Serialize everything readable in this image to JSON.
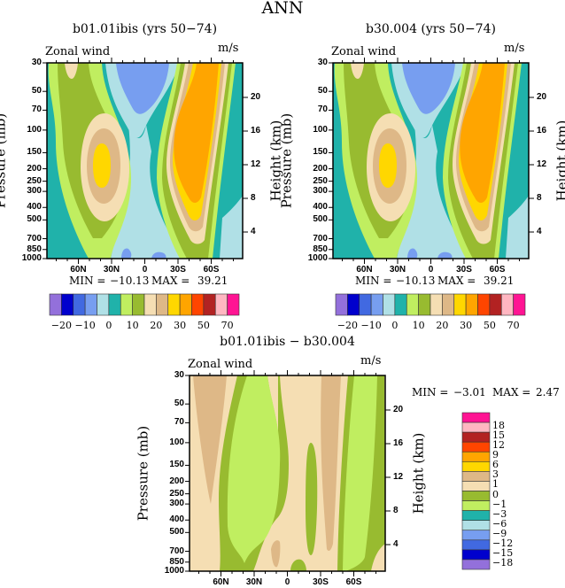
{
  "page_title": "ANN",
  "panels": [
    {
      "title": "b01.01ibis (yrs 50−74)",
      "left_label": "Zonal wind",
      "right_label": "m/s",
      "y_label": "Pressure (mb)",
      "y2_label": "Height (km)",
      "min_label": "MIN =",
      "min": "−10.13",
      "max_label": "MAX =",
      "max": "39.21"
    },
    {
      "title": "b30.004 (yrs 50−74)",
      "left_label": "Zonal wind",
      "right_label": "m/s",
      "y_label": "Pressure (mb)",
      "y2_label": "Height (km)",
      "min_label": "MIN =",
      "min": "−10.13",
      "max_label": "MAX =",
      "max": "39.21"
    },
    {
      "title": "b01.01ibis − b30.004",
      "left_label": "Zonal wind",
      "right_label": "m/s",
      "y_label": "Pressure (mb)",
      "y2_label": "Height (km)",
      "min_label": "MIN =",
      "min": "−3.01",
      "max_label": "MAX =",
      "max": "2.47"
    }
  ],
  "chart_data": [
    {
      "type": "heatmap",
      "subtype": "contour",
      "title": "b01.01ibis (yrs 50−74)",
      "variable": "Zonal wind",
      "units": "m/s",
      "ylabel": "Pressure (mb)",
      "y2label": "Height (km)",
      "ylim": [
        1000,
        30
      ],
      "yscale": "log",
      "y_ticks": [
        "30",
        "50",
        "70",
        "100",
        "150",
        "200",
        "250",
        "300",
        "400",
        "500",
        "700",
        "850",
        "1000"
      ],
      "y2_ticks": [
        "20",
        "16",
        "12",
        "8",
        "4"
      ],
      "x_ticks": [
        "60N",
        "30N",
        "0",
        "30S",
        "60S"
      ],
      "xlim": [
        90,
        -90
      ],
      "min": -10.13,
      "max": 39.21,
      "colorbar": {
        "orientation": "horizontal",
        "labels": [
          "−20",
          "−10",
          "0",
          "10",
          "20",
          "30",
          "50",
          "70"
        ],
        "colors": [
          "#9370db",
          "#0000cd",
          "#4169e1",
          "#779ef0",
          "#b0e0e6",
          "#20b2aa",
          "#c0ee60",
          "#98bb30",
          "#f5deb3",
          "#deb887",
          "#ffd700",
          "#ffa500",
          "#ff4500",
          "#b22222",
          "#ffb6c1",
          "#ff1493"
        ]
      }
    },
    {
      "type": "heatmap",
      "subtype": "contour",
      "title": "b30.004 (yrs 50−74)",
      "variable": "Zonal wind",
      "units": "m/s",
      "ylabel": "Pressure (mb)",
      "y2label": "Height (km)",
      "ylim": [
        1000,
        30
      ],
      "yscale": "log",
      "y_ticks": [
        "30",
        "50",
        "70",
        "100",
        "150",
        "200",
        "250",
        "300",
        "400",
        "500",
        "700",
        "850",
        "1000"
      ],
      "y2_ticks": [
        "20",
        "16",
        "12",
        "8",
        "4"
      ],
      "x_ticks": [
        "60N",
        "30N",
        "0",
        "30S",
        "60S"
      ],
      "xlim": [
        90,
        -90
      ],
      "min": -10.13,
      "max": 39.21,
      "colorbar": {
        "orientation": "horizontal",
        "labels": [
          "−20",
          "−10",
          "0",
          "10",
          "20",
          "30",
          "50",
          "70"
        ],
        "colors": [
          "#9370db",
          "#0000cd",
          "#4169e1",
          "#779ef0",
          "#b0e0e6",
          "#20b2aa",
          "#c0ee60",
          "#98bb30",
          "#f5deb3",
          "#deb887",
          "#ffd700",
          "#ffa500",
          "#ff4500",
          "#b22222",
          "#ffb6c1",
          "#ff1493"
        ]
      }
    },
    {
      "type": "heatmap",
      "subtype": "contour",
      "title": "b01.01ibis − b30.004",
      "variable": "Zonal wind",
      "units": "m/s",
      "ylabel": "Pressure (mb)",
      "y2label": "Height (km)",
      "ylim": [
        1000,
        30
      ],
      "yscale": "log",
      "y_ticks": [
        "30",
        "50",
        "70",
        "100",
        "150",
        "200",
        "250",
        "300",
        "400",
        "500",
        "700",
        "850",
        "1000"
      ],
      "y2_ticks": [
        "20",
        "16",
        "12",
        "8",
        "4"
      ],
      "x_ticks": [
        "60N",
        "30N",
        "0",
        "30S",
        "60S"
      ],
      "xlim": [
        90,
        -90
      ],
      "min": -3.01,
      "max": 2.47,
      "colorbar": {
        "orientation": "vertical",
        "labels": [
          "18",
          "15",
          "12",
          "9",
          "6",
          "3",
          "1",
          "0",
          "−1",
          "−3",
          "−6",
          "−9",
          "−12",
          "−15",
          "−18"
        ],
        "colors": [
          "#ff1493",
          "#ffb6c1",
          "#b22222",
          "#ff4500",
          "#ffa500",
          "#ffd700",
          "#deb887",
          "#f5deb3",
          "#98bb30",
          "#c0ee60",
          "#20b2aa",
          "#b0e0e6",
          "#779ef0",
          "#4169e1",
          "#0000cd",
          "#9370db"
        ]
      }
    }
  ]
}
